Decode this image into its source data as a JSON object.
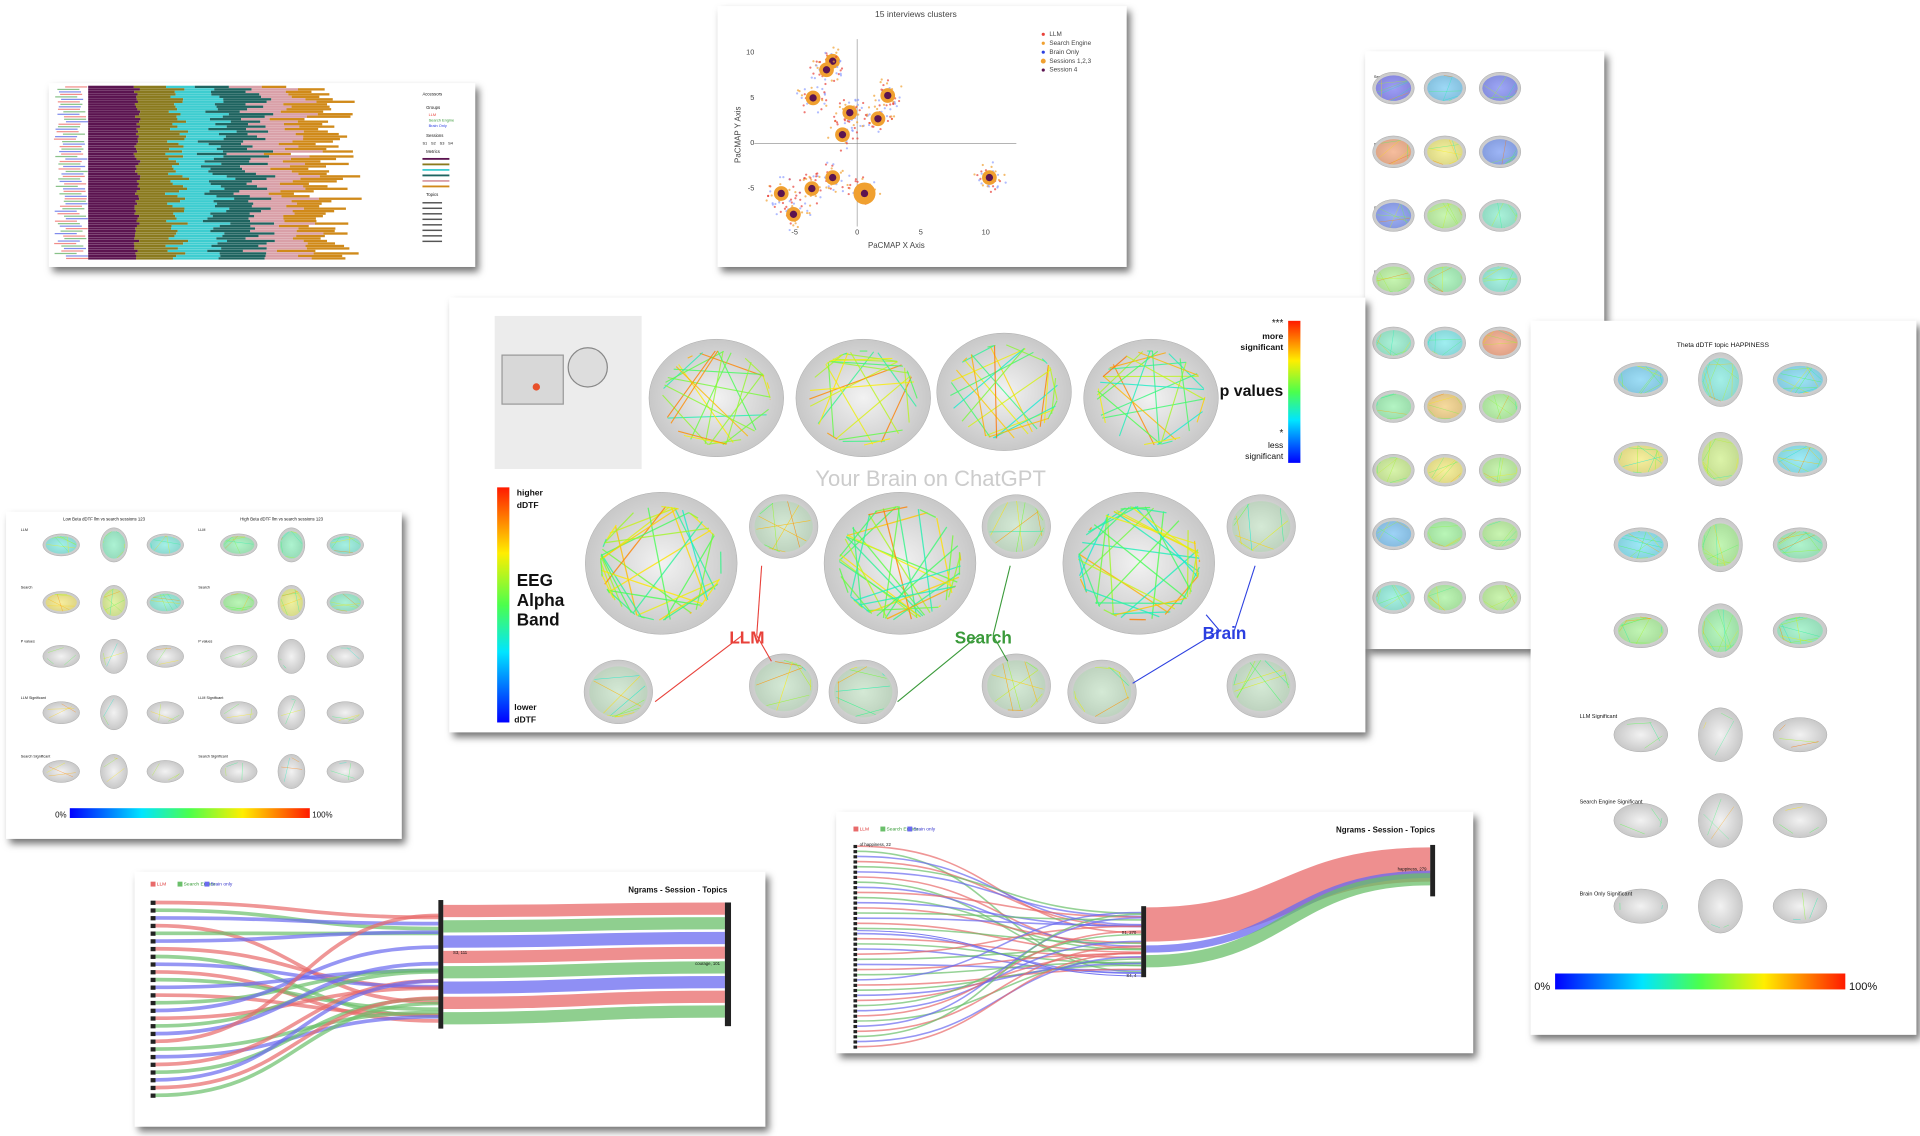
{
  "panels": {
    "engagement": {
      "legend_title": "Accessors",
      "groups_title": "Groups",
      "groups": [
        "LLM",
        "Search Engine",
        "Brain Only"
      ],
      "sessions_title": "Sessions",
      "sessions": [
        "S1",
        "S2",
        "S3",
        "S4"
      ],
      "metrics_title": "Metrics",
      "topics_title": "Topics"
    },
    "clusters": {
      "title": "15 interviews clusters",
      "x_label": "PaCMAP X Axis",
      "y_label": "PaCMAP Y Axis",
      "x_ticks": [
        "-5",
        "0",
        "5",
        "10"
      ],
      "y_ticks": [
        "10",
        "5",
        "0",
        "-5"
      ],
      "legend": [
        "LLM",
        "Search Engine",
        "Brain Only",
        "Sessions 1,2,3",
        "Session 4"
      ]
    },
    "sessions": {
      "row_labels": [
        "Session 1",
        "Session 2",
        "Session 3",
        "Session 4"
      ]
    },
    "theta": {
      "title": "Theta dDTF topic HAPPINESS",
      "row_labels": [
        "LLM Significant",
        "Search Engine Significant",
        "Brain Only Significant"
      ],
      "scale_min": "0%",
      "scale_max": "100%"
    },
    "alpha": {
      "watermark": "Your Brain on ChatGPT",
      "band_title": [
        "EEG",
        "Alpha",
        "Band"
      ],
      "higher": [
        "higher",
        "dDTF"
      ],
      "lower": [
        "lower",
        "dDTF"
      ],
      "p_title": "p values",
      "p_more_mark": "***",
      "p_more": [
        "more",
        "significant"
      ],
      "p_less_mark": "*",
      "p_less": [
        "less",
        "significant"
      ],
      "groups": [
        "LLM",
        "Search",
        "Brain"
      ]
    },
    "beta": {
      "titles": [
        "Low Beta dDTF llm vs search sessions 123",
        "High Beta dDTF llm vs search sessions 123"
      ],
      "row_labels": [
        "LLM",
        "Search",
        "P values",
        "LLM Significant",
        "Search Significant"
      ],
      "scale_min": "0%",
      "scale_max": "100%"
    },
    "ngrams_left": {
      "title": "Ngrams - Session - Topics",
      "legend": [
        "LLM",
        "Search Engine",
        "Brain only"
      ],
      "session_label": "S3, 111",
      "target_label": "courage, 101"
    },
    "ngrams_right": {
      "title": "Ngrams - Session - Topics",
      "legend": [
        "LLM",
        "Search Engine",
        "Brain only"
      ],
      "source_label": "of happiness, 22",
      "session_label": "S1, 270",
      "target_label": "happiness, 279",
      "other_label": "S4, 4"
    }
  }
}
